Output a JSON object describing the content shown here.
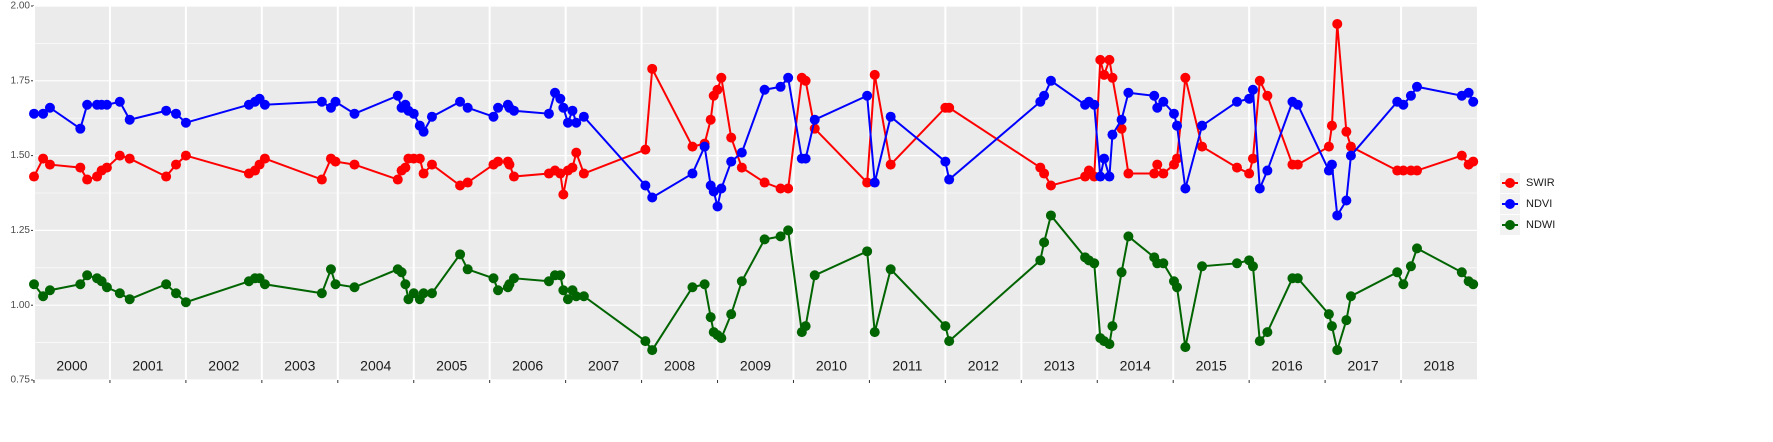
{
  "chart_data": {
    "type": "line",
    "x": [
      2000.0,
      2000.12,
      2000.21,
      2000.61,
      2000.7,
      2000.83,
      2000.89,
      2000.96,
      2001.13,
      2001.26,
      2001.74,
      2001.87,
      2002.0,
      2002.83,
      2002.91,
      2002.97,
      2003.04,
      2003.79,
      2003.91,
      2003.97,
      2004.22,
      2004.79,
      2004.84,
      2004.89,
      2004.93,
      2005.0,
      2005.08,
      2005.13,
      2005.24,
      2005.61,
      2005.71,
      2006.05,
      2006.11,
      2006.24,
      2006.26,
      2006.32,
      2006.78,
      2006.86,
      2006.93,
      2006.97,
      2007.03,
      2007.09,
      2007.14,
      2007.24,
      2008.05,
      2008.14,
      2008.67,
      2008.83,
      2008.91,
      2008.95,
      2009.0,
      2009.05,
      2009.18,
      2009.32,
      2009.62,
      2009.83,
      2009.93,
      2010.11,
      2010.16,
      2010.28,
      2010.97,
      2011.07,
      2011.28,
      2012.0,
      2012.05,
      2013.25,
      2013.3,
      2013.39,
      2013.84,
      2013.89,
      2013.96,
      2014.04,
      2014.09,
      2014.16,
      2014.2,
      2014.32,
      2014.41,
      2014.75,
      2014.79,
      2014.87,
      2015.01,
      2015.05,
      2015.16,
      2015.38,
      2015.84,
      2016.0,
      2016.05,
      2016.14,
      2016.24,
      2016.57,
      2016.64,
      2017.05,
      2017.09,
      2017.16,
      2017.28,
      2017.34,
      2017.95,
      2018.03,
      2018.13,
      2018.21,
      2018.8,
      2018.89,
      2018.95
    ],
    "series": [
      {
        "name": "SWIR",
        "color": "#ff0000",
        "values": [
          1.43,
          1.49,
          1.47,
          1.46,
          1.42,
          1.43,
          1.45,
          1.46,
          1.5,
          1.49,
          1.43,
          1.47,
          1.5,
          1.44,
          1.45,
          1.47,
          1.49,
          1.42,
          1.49,
          1.48,
          1.47,
          1.42,
          1.45,
          1.46,
          1.49,
          1.49,
          1.49,
          1.44,
          1.47,
          1.4,
          1.41,
          1.47,
          1.48,
          1.48,
          1.47,
          1.43,
          1.44,
          1.45,
          1.44,
          1.37,
          1.45,
          1.46,
          1.51,
          1.44,
          1.52,
          1.79,
          1.53,
          1.54,
          1.62,
          1.7,
          1.72,
          1.76,
          1.56,
          1.46,
          1.41,
          1.39,
          1.39,
          1.76,
          1.75,
          1.59,
          1.41,
          1.77,
          1.47,
          1.66,
          1.66,
          1.46,
          1.44,
          1.4,
          1.43,
          1.45,
          1.43,
          1.82,
          1.77,
          1.82,
          1.76,
          1.59,
          1.44,
          1.44,
          1.47,
          1.44,
          1.47,
          1.49,
          1.76,
          1.53,
          1.46,
          1.44,
          1.49,
          1.75,
          1.7,
          1.47,
          1.47,
          1.53,
          1.6,
          1.94,
          1.58,
          1.53,
          1.45,
          1.45,
          1.45,
          1.45,
          1.5,
          1.47,
          1.48
        ]
      },
      {
        "name": "NDVI",
        "color": "#0000ff",
        "values": [
          1.64,
          1.64,
          1.66,
          1.59,
          1.67,
          1.67,
          1.67,
          1.67,
          1.68,
          1.62,
          1.65,
          1.64,
          1.61,
          1.67,
          1.68,
          1.69,
          1.67,
          1.68,
          1.66,
          1.68,
          1.64,
          1.7,
          1.66,
          1.67,
          1.65,
          1.64,
          1.6,
          1.58,
          1.63,
          1.68,
          1.66,
          1.63,
          1.66,
          1.67,
          1.66,
          1.65,
          1.64,
          1.71,
          1.69,
          1.66,
          1.61,
          1.65,
          1.61,
          1.63,
          1.4,
          1.36,
          1.44,
          1.53,
          1.4,
          1.38,
          1.33,
          1.39,
          1.48,
          1.51,
          1.72,
          1.73,
          1.76,
          1.49,
          1.49,
          1.62,
          1.7,
          1.41,
          1.63,
          1.48,
          1.42,
          1.68,
          1.7,
          1.75,
          1.67,
          1.68,
          1.67,
          1.43,
          1.49,
          1.43,
          1.57,
          1.62,
          1.71,
          1.7,
          1.66,
          1.68,
          1.64,
          1.6,
          1.39,
          1.6,
          1.68,
          1.69,
          1.72,
          1.39,
          1.45,
          1.68,
          1.67,
          1.45,
          1.47,
          1.3,
          1.35,
          1.5,
          1.68,
          1.67,
          1.7,
          1.73,
          1.7,
          1.71,
          1.68
        ]
      },
      {
        "name": "NDWI",
        "color": "#006400",
        "values": [
          1.07,
          1.03,
          1.05,
          1.07,
          1.1,
          1.09,
          1.08,
          1.06,
          1.04,
          1.02,
          1.07,
          1.04,
          1.01,
          1.08,
          1.09,
          1.09,
          1.07,
          1.04,
          1.12,
          1.07,
          1.06,
          1.12,
          1.11,
          1.07,
          1.02,
          1.04,
          1.02,
          1.04,
          1.04,
          1.17,
          1.12,
          1.09,
          1.05,
          1.06,
          1.07,
          1.09,
          1.08,
          1.1,
          1.1,
          1.05,
          1.02,
          1.05,
          1.03,
          1.03,
          0.88,
          0.85,
          1.06,
          1.07,
          0.96,
          0.91,
          0.9,
          0.89,
          0.97,
          1.08,
          1.22,
          1.23,
          1.25,
          0.91,
          0.93,
          1.1,
          1.18,
          0.91,
          1.12,
          0.93,
          0.88,
          1.15,
          1.21,
          1.3,
          1.16,
          1.15,
          1.14,
          0.89,
          0.88,
          0.87,
          0.93,
          1.11,
          1.23,
          1.16,
          1.14,
          1.14,
          1.08,
          1.06,
          0.86,
          1.13,
          1.14,
          1.15,
          1.13,
          0.88,
          0.91,
          1.09,
          1.09,
          0.97,
          0.93,
          0.85,
          0.95,
          1.03,
          1.11,
          1.07,
          1.13,
          1.19,
          1.11,
          1.08,
          1.07
        ]
      }
    ],
    "xlim": [
      2000,
      2019
    ],
    "xticks": [
      2000,
      2001,
      2002,
      2003,
      2004,
      2005,
      2006,
      2007,
      2008,
      2009,
      2010,
      2011,
      2012,
      2013,
      2014,
      2015,
      2016,
      2017,
      2018
    ],
    "year_labels": [
      "2000",
      "2001",
      "2002",
      "2003",
      "2004",
      "2005",
      "2006",
      "2007",
      "2008",
      "2009",
      "2010",
      "2011",
      "2012",
      "2013",
      "2014",
      "2015",
      "2016",
      "2017",
      "2018"
    ],
    "ylim": [
      0.75,
      2.0
    ],
    "yticks": [
      {
        "value": 0.75,
        "label": "0.75"
      },
      {
        "value": 1.0,
        "label": "1.00"
      },
      {
        "value": 1.25,
        "label": "1.25"
      },
      {
        "value": 1.5,
        "label": "1.50"
      },
      {
        "value": 1.75,
        "label": "1.75"
      },
      {
        "value": 2.0,
        "label": "2.00"
      }
    ],
    "yminorticks": [
      0.875,
      1.125,
      1.375,
      1.625,
      1.875
    ],
    "grid": true,
    "legend": "right"
  }
}
